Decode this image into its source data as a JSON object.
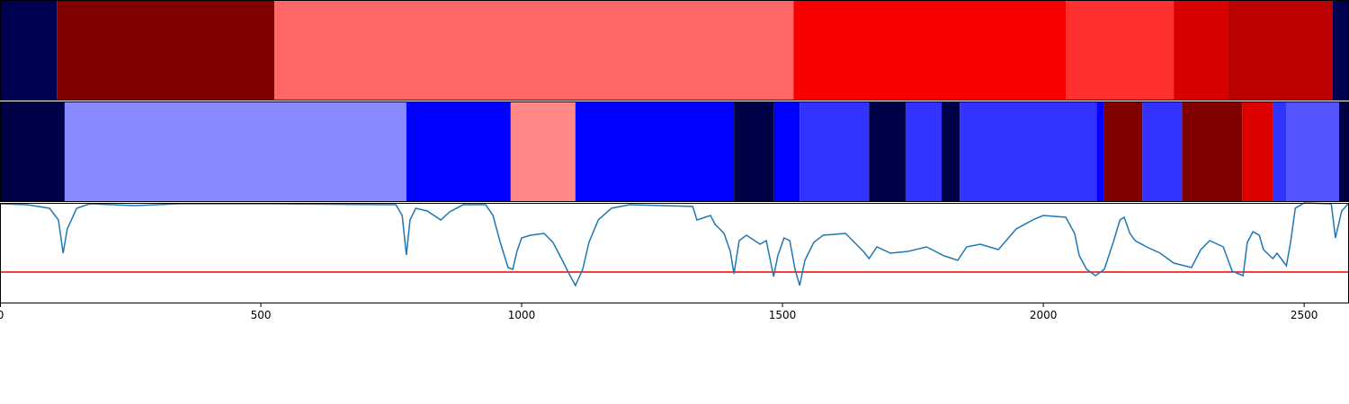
{
  "chart_data": [
    {
      "type": "band",
      "xlim": [
        0,
        2586
      ],
      "bins": [
        0,
        109,
        526,
        1521,
        2043,
        2250,
        2355,
        2555,
        2586
      ],
      "colors": [
        "#000050",
        "#800000",
        "#ff6666",
        "#f80000",
        "#ff3030",
        "#d80000",
        "#bb0000",
        "#000050"
      ]
    },
    {
      "type": "band",
      "xlim": [
        0,
        2586
      ],
      "bins": [
        0,
        124,
        779,
        979,
        1103,
        1407,
        1484,
        1533,
        1666,
        1736,
        1805,
        1840,
        2102,
        2116,
        2190,
        2266,
        2381,
        2441,
        2466,
        2567,
        2586
      ],
      "colors": [
        "#000046",
        "#8888ff",
        "#0000ff",
        "#ff8888",
        "#0000ff",
        "#000046",
        "#0000ff",
        "#3333ff",
        "#000046",
        "#3333ff",
        "#000046",
        "#3333ff",
        "#0000ff",
        "#800000",
        "#3333ff",
        "#800000",
        "#dd0000",
        "#3333ff",
        "#5555ff",
        "#000046"
      ]
    },
    {
      "type": "line",
      "xlim": [
        0,
        2586
      ],
      "ylim": [
        0,
        112
      ],
      "xticks": [
        0,
        500,
        1000,
        1500,
        2000,
        2500
      ],
      "threshold": 35,
      "threshold_color": "#ee0000",
      "series": [
        {
          "color": "#1f77b4",
          "x": [
            0,
            52,
            95,
            112,
            121,
            129,
            147,
            172,
            259,
            345,
            517,
            759,
            771,
            779,
            786,
            797,
            819,
            845,
            862,
            888,
            931,
            945,
            959,
            974,
            983,
            991,
            1000,
            1017,
            1043,
            1060,
            1078,
            1091,
            1103,
            1117,
            1129,
            1147,
            1172,
            1207,
            1328,
            1336,
            1362,
            1371,
            1388,
            1400,
            1407,
            1417,
            1431,
            1457,
            1469,
            1483,
            1491,
            1503,
            1514,
            1524,
            1533,
            1543,
            1560,
            1578,
            1621,
            1638,
            1655,
            1666,
            1681,
            1707,
            1741,
            1776,
            1810,
            1836,
            1853,
            1879,
            1914,
            1948,
            1983,
            2000,
            2043,
            2060,
            2069,
            2083,
            2100,
            2117,
            2134,
            2147,
            2155,
            2166,
            2176,
            2198,
            2224,
            2250,
            2284,
            2302,
            2319,
            2345,
            2362,
            2383,
            2391,
            2402,
            2414,
            2422,
            2440,
            2448,
            2466,
            2474,
            2483,
            2500,
            2552,
            2560,
            2572,
            2586
          ],
          "values": [
            111,
            110,
            106,
            93,
            56,
            83,
            106,
            111,
            109,
            111,
            111,
            110,
            98,
            54,
            93,
            106,
            103,
            93,
            102,
            110,
            110,
            98,
            68,
            40,
            38,
            58,
            73,
            76,
            78,
            68,
            48,
            33,
            20,
            38,
            68,
            93,
            106,
            110,
            108,
            93,
            98,
            88,
            78,
            58,
            33,
            70,
            76,
            66,
            70,
            30,
            53,
            73,
            70,
            38,
            20,
            48,
            68,
            76,
            78,
            68,
            58,
            50,
            63,
            56,
            58,
            63,
            53,
            48,
            63,
            66,
            60,
            83,
            94,
            98,
            96,
            78,
            53,
            38,
            31,
            38,
            68,
            93,
            96,
            78,
            70,
            63,
            56,
            45,
            40,
            60,
            70,
            63,
            36,
            31,
            68,
            80,
            76,
            60,
            50,
            56,
            42,
            68,
            106,
            112,
            111,
            73,
            103,
            112
          ]
        }
      ]
    }
  ]
}
